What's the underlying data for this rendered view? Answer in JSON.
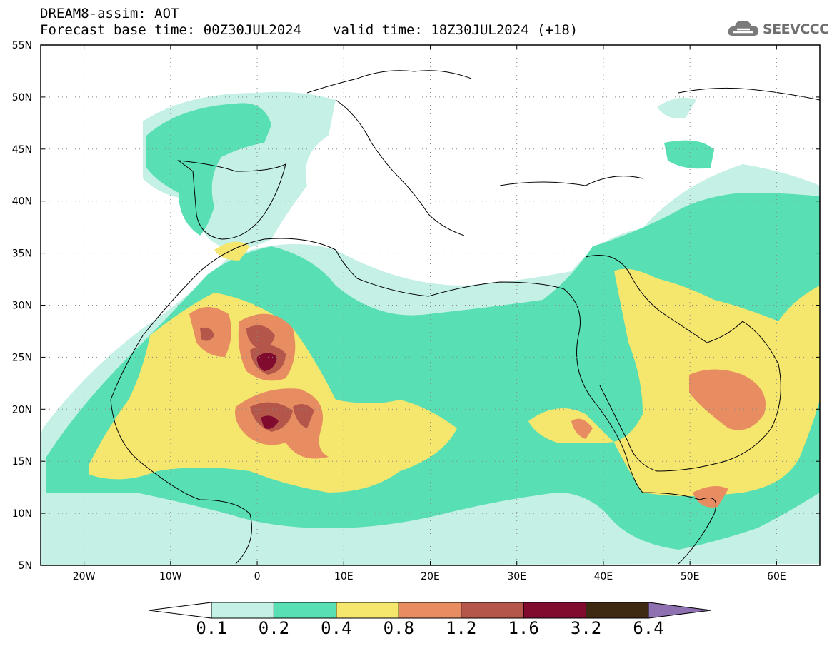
{
  "header": {
    "title_line1": "DREAM8-assim: AOT",
    "base_time": "Forecast base time: 00Z30JUL2024",
    "valid_time": "valid time: 18Z30JUL2024 (+18)"
  },
  "logo": {
    "text": "SEEVCCC",
    "icon": "cloud-icon"
  },
  "map": {
    "lat_labels": [
      "55N",
      "50N",
      "45N",
      "40N",
      "35N",
      "30N",
      "25N",
      "20N",
      "15N",
      "10N",
      "5N"
    ],
    "lon_labels": [
      "20W",
      "10W",
      "0",
      "10E",
      "20E",
      "30E",
      "40E",
      "50E",
      "60E"
    ],
    "lat_range": [
      5,
      55
    ],
    "lon_range": [
      -25,
      65
    ],
    "grid": true
  },
  "colorbar": {
    "levels": [
      "0.1",
      "0.2",
      "0.4",
      "0.8",
      "1.2",
      "1.6",
      "3.2",
      "6.4"
    ],
    "colors": [
      "#c4f0e6",
      "#59dfb4",
      "#f5e66e",
      "#e88d62",
      "#b4574a",
      "#800b2f",
      "#3e2a13",
      "#8f70b0"
    ]
  }
}
